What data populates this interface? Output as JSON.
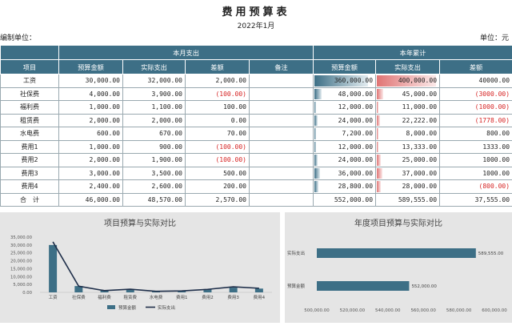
{
  "header": {
    "title": "费用预算表",
    "date": "2022年1月",
    "unit_left": "编制单位：",
    "unit_right": "单位：元"
  },
  "table": {
    "group_month": "本月支出",
    "group_year": "本年累计",
    "columns": [
      "项目",
      "预算金额",
      "实际支出",
      "差额",
      "备注",
      "预算金额",
      "实际支出",
      "差额"
    ],
    "rows": [
      {
        "name": "工资",
        "m_budget": "30,000.00",
        "m_actual": "32,000.00",
        "m_diff": "2,000.00",
        "m_diff_neg": false,
        "note": "",
        "y_budget": "360,000.00",
        "y_actual": "400,000.00",
        "y_diff": "40000.00",
        "y_diff_neg": false,
        "yb": 360000,
        "ya": 400000
      },
      {
        "name": "社保费",
        "m_budget": "4,000.00",
        "m_actual": "3,900.00",
        "m_diff": "(100.00)",
        "m_diff_neg": true,
        "note": "",
        "y_budget": "48,000.00",
        "y_actual": "45,000.00",
        "y_diff": "(3000.00)",
        "y_diff_neg": true,
        "yb": 48000,
        "ya": 45000
      },
      {
        "name": "福利费",
        "m_budget": "1,000.00",
        "m_actual": "1,100.00",
        "m_diff": "100.00",
        "m_diff_neg": false,
        "note": "",
        "y_budget": "12,000.00",
        "y_actual": "11,000.00",
        "y_diff": "(1000.00)",
        "y_diff_neg": true,
        "yb": 12000,
        "ya": 11000
      },
      {
        "name": "租赁费",
        "m_budget": "2,000.00",
        "m_actual": "2,000.00",
        "m_diff": "0.00",
        "m_diff_neg": false,
        "note": "",
        "y_budget": "24,000.00",
        "y_actual": "22,222.00",
        "y_diff": "(1778.00)",
        "y_diff_neg": true,
        "yb": 24000,
        "ya": 22222
      },
      {
        "name": "水电费",
        "m_budget": "600.00",
        "m_actual": "670.00",
        "m_diff": "70.00",
        "m_diff_neg": false,
        "note": "",
        "y_budget": "7,200.00",
        "y_actual": "8,000.00",
        "y_diff": "800.00",
        "y_diff_neg": false,
        "yb": 7200,
        "ya": 8000
      },
      {
        "name": "费用1",
        "m_budget": "1,000.00",
        "m_actual": "900.00",
        "m_diff": "(100.00)",
        "m_diff_neg": true,
        "note": "",
        "y_budget": "12,000.00",
        "y_actual": "13,333.00",
        "y_diff": "1333.00",
        "y_diff_neg": false,
        "yb": 12000,
        "ya": 13333
      },
      {
        "name": "费用2",
        "m_budget": "2,000.00",
        "m_actual": "1,900.00",
        "m_diff": "(100.00)",
        "m_diff_neg": true,
        "note": "",
        "y_budget": "24,000.00",
        "y_actual": "25,000.00",
        "y_diff": "1000.00",
        "y_diff_neg": false,
        "yb": 24000,
        "ya": 25000
      },
      {
        "name": "费用3",
        "m_budget": "3,000.00",
        "m_actual": "3,500.00",
        "m_diff": "500.00",
        "m_diff_neg": false,
        "note": "",
        "y_budget": "36,000.00",
        "y_actual": "37,000.00",
        "y_diff": "1000.00",
        "y_diff_neg": false,
        "yb": 36000,
        "ya": 37000
      },
      {
        "name": "费用4",
        "m_budget": "2,400.00",
        "m_actual": "2,600.00",
        "m_diff": "200.00",
        "m_diff_neg": false,
        "note": "",
        "y_budget": "28,800.00",
        "y_actual": "28,000.00",
        "y_diff": "(800.00)",
        "y_diff_neg": true,
        "yb": 28800,
        "ya": 28000
      }
    ],
    "total": {
      "name": "合　计",
      "m_budget": "46,000.00",
      "m_actual": "48,570.00",
      "m_diff": "2,570.00",
      "note": "",
      "y_budget": "552,000.00",
      "y_actual": "589,555.00",
      "y_diff": "37,555.00"
    },
    "year_bar_max": 400000,
    "colors": {
      "header": "#3d6f86",
      "negative": "#d62424",
      "bar_blue": "#3d6f86",
      "bar_red": "#e07474"
    }
  },
  "chart_data": [
    {
      "type": "bar",
      "title": "项目预算与实际对比",
      "categories": [
        "工资",
        "社保费",
        "福利费",
        "租赁费",
        "水电费",
        "费用1",
        "费用2",
        "费用3",
        "费用4"
      ],
      "series": [
        {
          "name": "预算金额",
          "kind": "bar",
          "color": "#3d6f86",
          "values": [
            30000,
            4000,
            1000,
            2000,
            600,
            1000,
            2000,
            3000,
            2400
          ]
        },
        {
          "name": "实际支出",
          "kind": "line",
          "color": "#1f2f4a",
          "values": [
            32000,
            3900,
            1100,
            2000,
            670,
            900,
            1900,
            3500,
            2600
          ]
        }
      ],
      "yticks": [
        "35,000.00",
        "30,000.00",
        "25,000.00",
        "20,000.00",
        "15,000.00",
        "10,000.00",
        "5,000.00",
        "0.00"
      ],
      "ylim": [
        0,
        35000
      ],
      "legend": "bottom"
    },
    {
      "type": "bar",
      "orientation": "horizontal",
      "title": "年度项目预算与实际对比",
      "categories": [
        "实际支出",
        "预算金额"
      ],
      "values": [
        589555,
        552000
      ],
      "value_labels": [
        "589,555.00",
        "552,000.00"
      ],
      "color": "#3d6f86",
      "xticks": [
        "500,000.00",
        "520,000.00",
        "540,000.00",
        "560,000.00",
        "580,000.00",
        "600,000.00"
      ],
      "xlim": [
        500000,
        600000
      ]
    }
  ]
}
